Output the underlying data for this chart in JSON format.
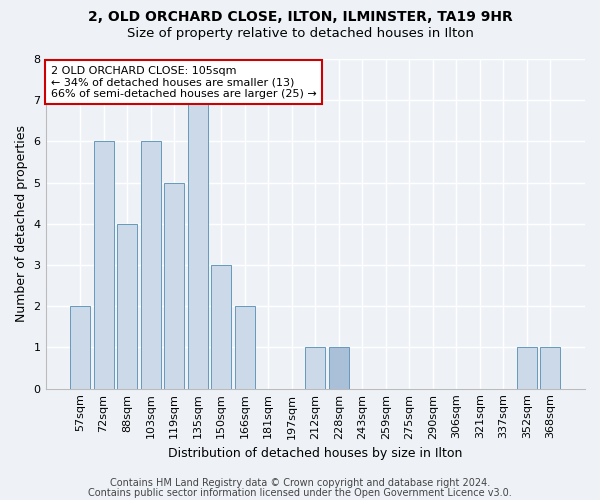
{
  "title_line1": "2, OLD ORCHARD CLOSE, ILTON, ILMINSTER, TA19 9HR",
  "title_line2": "Size of property relative to detached houses in Ilton",
  "xlabel": "Distribution of detached houses by size in Ilton",
  "ylabel": "Number of detached properties",
  "categories": [
    "57sqm",
    "72sqm",
    "88sqm",
    "103sqm",
    "119sqm",
    "135sqm",
    "150sqm",
    "166sqm",
    "181sqm",
    "197sqm",
    "212sqm",
    "228sqm",
    "243sqm",
    "259sqm",
    "275sqm",
    "290sqm",
    "306sqm",
    "321sqm",
    "337sqm",
    "352sqm",
    "368sqm"
  ],
  "values": [
    2,
    6,
    4,
    6,
    5,
    7,
    3,
    2,
    0,
    0,
    1,
    1,
    0,
    0,
    0,
    0,
    0,
    0,
    0,
    1,
    1
  ],
  "bar_color": "#ccd9e8",
  "bar_color_highlight": "#aac0d8",
  "highlight_index": 11,
  "bar_edge_color": "#6699bb",
  "ylim": [
    0,
    8
  ],
  "yticks": [
    0,
    1,
    2,
    3,
    4,
    5,
    6,
    7,
    8
  ],
  "annotation_line1": "2 OLD ORCHARD CLOSE: 105sqm",
  "annotation_line2": "← 34% of detached houses are smaller (13)",
  "annotation_line3": "66% of semi-detached houses are larger (25) →",
  "annotation_box_color": "#ffffff",
  "annotation_border_color": "#cc0000",
  "footnote1": "Contains HM Land Registry data © Crown copyright and database right 2024.",
  "footnote2": "Contains public sector information licensed under the Open Government Licence v3.0.",
  "background_color": "#eef2f7",
  "grid_color": "#ffffff",
  "title1_fontsize": 10,
  "title2_fontsize": 9.5,
  "ylabel_fontsize": 9,
  "xlabel_fontsize": 9,
  "tick_fontsize": 8,
  "annotation_fontsize": 8,
  "footnote_fontsize": 7
}
